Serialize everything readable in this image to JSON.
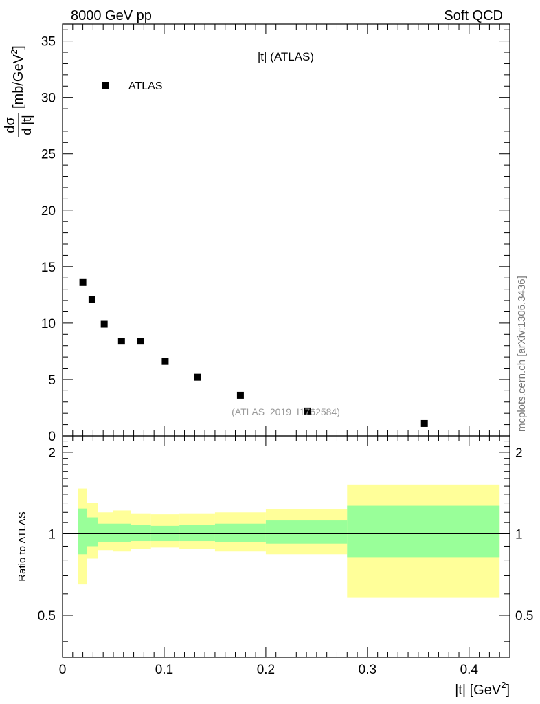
{
  "header": {
    "left": "8000 GeV pp",
    "right": "Soft QCD"
  },
  "side_label": "mcplots.cern.ch [arXiv:1306.3436]",
  "chart_data": [
    {
      "type": "scatter",
      "title": "|t| (ATLAS)",
      "watermark": "(ATLAS_2019_I1762584)",
      "ylabel": {
        "num": "dσ",
        "den": "d |t|",
        "unit": "[mb/GeV",
        "unit_exp": "2",
        "unit_close": "]"
      },
      "xlim": [
        0,
        0.44
      ],
      "ylim": [
        0,
        36.5
      ],
      "y_ticks": [
        0,
        5,
        10,
        15,
        20,
        25,
        30,
        35
      ],
      "y_tick_labels": [
        "0",
        "5",
        "10",
        "15",
        "20",
        "25",
        "30",
        "35"
      ],
      "legend": {
        "position": "top-left",
        "entries": [
          {
            "name": "ATLAS",
            "marker": "square",
            "color": "#000000"
          }
        ]
      },
      "series": [
        {
          "name": "ATLAS",
          "color": "#000000",
          "x": [
            0.02,
            0.029,
            0.041,
            0.058,
            0.077,
            0.101,
            0.133,
            0.175,
            0.241,
            0.356
          ],
          "y": [
            13.6,
            12.1,
            9.9,
            8.4,
            8.4,
            6.6,
            5.2,
            3.6,
            2.2,
            1.1
          ]
        }
      ]
    },
    {
      "type": "area",
      "ylabel": "Ratio to ATLAS",
      "xlabel": {
        "text": "|t|  [GeV",
        "exp": "2",
        "close": "]"
      },
      "xlim": [
        0,
        0.44
      ],
      "ylim": [
        0.35,
        2.3
      ],
      "x_ticks": [
        0,
        0.1,
        0.2,
        0.3,
        0.4
      ],
      "x_tick_labels": [
        "0",
        "0.1",
        "0.2",
        "0.3",
        "0.4"
      ],
      "y_ticks": [
        0.5,
        1,
        2
      ],
      "y_tick_labels": [
        "0.5",
        "1",
        "2"
      ],
      "reference_line": 1,
      "band_colors": {
        "outer": "#ffff99",
        "inner": "#99ff99"
      },
      "bins": [
        {
          "lo": 0.015,
          "hi": 0.024,
          "yellow": [
            0.65,
            1.47
          ],
          "green": [
            0.84,
            1.24
          ]
        },
        {
          "lo": 0.024,
          "hi": 0.035,
          "yellow": [
            0.81,
            1.3
          ],
          "green": [
            0.9,
            1.15
          ]
        },
        {
          "lo": 0.035,
          "hi": 0.05,
          "yellow": [
            0.87,
            1.2
          ],
          "green": [
            0.93,
            1.09
          ]
        },
        {
          "lo": 0.05,
          "hi": 0.067,
          "yellow": [
            0.86,
            1.22
          ],
          "green": [
            0.93,
            1.09
          ]
        },
        {
          "lo": 0.067,
          "hi": 0.087,
          "yellow": [
            0.88,
            1.19
          ],
          "green": [
            0.94,
            1.08
          ]
        },
        {
          "lo": 0.087,
          "hi": 0.115,
          "yellow": [
            0.89,
            1.18
          ],
          "green": [
            0.94,
            1.07
          ]
        },
        {
          "lo": 0.115,
          "hi": 0.15,
          "yellow": [
            0.88,
            1.19
          ],
          "green": [
            0.94,
            1.08
          ]
        },
        {
          "lo": 0.15,
          "hi": 0.2,
          "yellow": [
            0.86,
            1.2
          ],
          "green": [
            0.93,
            1.09
          ]
        },
        {
          "lo": 0.2,
          "hi": 0.28,
          "yellow": [
            0.84,
            1.23
          ],
          "green": [
            0.92,
            1.12
          ]
        },
        {
          "lo": 0.28,
          "hi": 0.43,
          "yellow": [
            0.58,
            1.52
          ],
          "green": [
            0.82,
            1.27
          ]
        }
      ]
    }
  ]
}
